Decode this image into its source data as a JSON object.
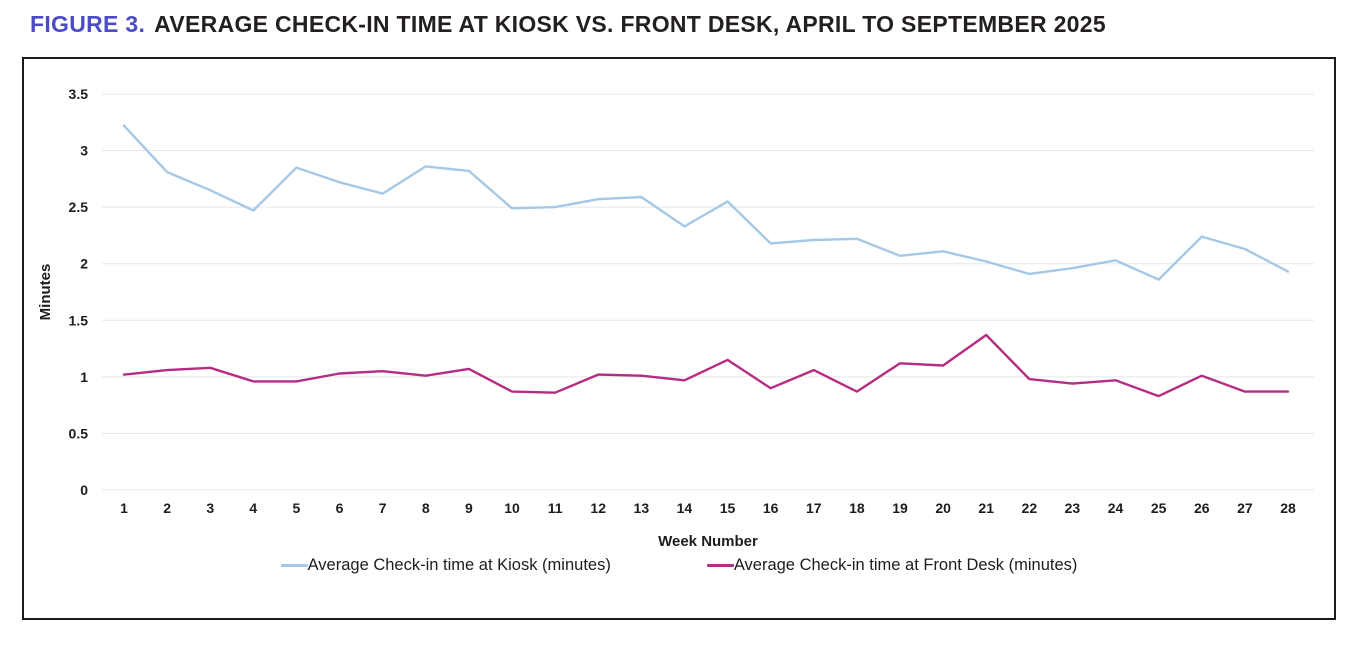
{
  "page": {
    "figure_label": "FIGURE 3.",
    "title": "AVERAGE CHECK-IN TIME AT KIOSK VS. FRONT DESK, APRIL TO SEPTEMBER 2025"
  },
  "colors": {
    "figure_label": "#4c4cc7",
    "title_text": "#231f20",
    "gridline": "#e7e7e7",
    "frame_border": "#1a1a1a",
    "kiosk_line": "#a5c8e6",
    "front_desk_line": "#b52d82"
  },
  "chart_data": {
    "type": "line",
    "title": "Average check-in time at kiosk vs. front desk, April to September 2025",
    "xlabel": "Week Number",
    "ylabel": "Minutes",
    "x": [
      1,
      2,
      3,
      4,
      5,
      6,
      7,
      8,
      9,
      10,
      11,
      12,
      13,
      14,
      15,
      16,
      17,
      18,
      19,
      20,
      21,
      22,
      23,
      24,
      25,
      26,
      27,
      28
    ],
    "ylim": [
      0,
      3.5
    ],
    "y_tick_step": 0.5,
    "y_tick_labels": [
      "0",
      "0.5",
      "1",
      "1.5",
      "2",
      "2.5",
      "3",
      "3.5"
    ],
    "grid": true,
    "legend_position": "bottom",
    "series": [
      {
        "name": "Average Check-in time at Kiosk (minutes)",
        "color": "#a5c8e6",
        "values": [
          3.22,
          2.81,
          2.65,
          2.47,
          2.85,
          2.72,
          2.62,
          2.86,
          2.82,
          2.49,
          2.5,
          2.57,
          2.59,
          2.33,
          2.55,
          2.18,
          2.21,
          2.22,
          2.07,
          2.11,
          2.02,
          1.91,
          1.96,
          2.03,
          1.86,
          2.24,
          2.13,
          1.93
        ]
      },
      {
        "name": "Average Check-in time at Front Desk (minutes)",
        "color": "#b52d82",
        "values": [
          1.02,
          1.06,
          1.08,
          0.96,
          0.96,
          1.03,
          1.05,
          1.01,
          1.07,
          0.87,
          0.86,
          1.02,
          1.01,
          0.97,
          1.15,
          0.9,
          1.06,
          0.87,
          1.12,
          1.1,
          1.37,
          0.98,
          0.94,
          0.97,
          0.83,
          1.01,
          0.87,
          0.87
        ]
      }
    ]
  }
}
